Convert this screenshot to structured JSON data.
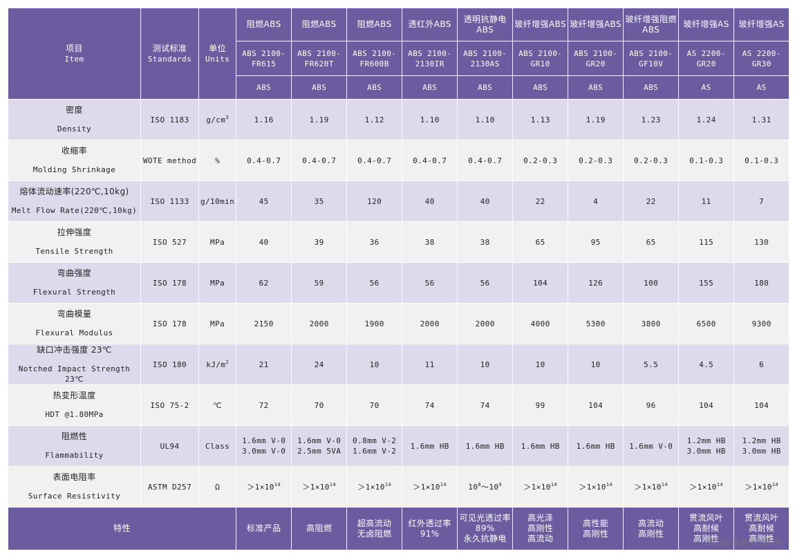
{
  "header": {
    "item": {
      "cn": "项目",
      "en": "Item"
    },
    "standard": {
      "cn": "测试标准",
      "en": "Standards"
    },
    "unit": {
      "cn": "单位",
      "en": "Units"
    },
    "grades": [
      {
        "name": "阻燃ABS",
        "code": [
          "ABS 2100-",
          "FR615"
        ],
        "base": "ABS"
      },
      {
        "name": "阻燃ABS",
        "code": [
          "ABS 2100-",
          "FR620T"
        ],
        "base": "ABS"
      },
      {
        "name": "阻燃ABS",
        "code": [
          "ABS 2100-",
          "FR600B"
        ],
        "base": "ABS"
      },
      {
        "name": "透红外ABS",
        "code": [
          "ABS 2100-",
          "2130IR"
        ],
        "base": "ABS"
      },
      {
        "name": "透明抗静电ABS",
        "code": [
          "ABS 2100-",
          "2130AS"
        ],
        "base": "ABS"
      },
      {
        "name": "玻纤增强ABS",
        "code": [
          "ABS 2100-",
          "GR10"
        ],
        "base": "ABS"
      },
      {
        "name": "玻纤增强ABS",
        "code": [
          "ABS 2100-",
          "GR20"
        ],
        "base": "ABS"
      },
      {
        "name": "玻纤增强阻燃ABS",
        "code": [
          "ABS 2100-",
          "GF10V"
        ],
        "base": "ABS"
      },
      {
        "name": "玻纤增强AS",
        "code": [
          "AS 2200-",
          "GR20"
        ],
        "base": "AS"
      },
      {
        "name": "玻纤增强AS",
        "code": [
          "AS 2200-",
          "GR30"
        ],
        "base": "AS"
      }
    ]
  },
  "rows": [
    {
      "cn": "密度",
      "en": "Density",
      "standard": "ISO 1183",
      "unit": "g/cm",
      "unit_sup": "3",
      "values": [
        "1.16",
        "1.19",
        "1.12",
        "1.10",
        "1.10",
        "1.13",
        "1.19",
        "1.23",
        "1.24",
        "1.31"
      ]
    },
    {
      "cn": "收缩率",
      "en": "Molding Shrinkage",
      "standard": "WOTE method",
      "unit": "%",
      "values": [
        "0.4-0.7",
        "0.4-0.7",
        "0.4-0.7",
        "0.4-0.7",
        "0.4-0.7",
        "0.2-0.3",
        "0.2-0.3",
        "0.2-0.3",
        "0.1-0.3",
        "0.1-0.3"
      ]
    },
    {
      "cn": "熔体流动速率(220℃,10kg)",
      "en": "Melt Flow Rate(220℃,10kg)",
      "standard": "ISO 1133",
      "unit": "g/10min",
      "values": [
        "45",
        "35",
        "120",
        "40",
        "40",
        "22",
        "4",
        "22",
        "11",
        "7"
      ]
    },
    {
      "cn": "拉伸强度",
      "en": "Tensile Strength",
      "standard": "ISO 527",
      "unit": "MPa",
      "values": [
        "40",
        "39",
        "36",
        "38",
        "38",
        "65",
        "95",
        "65",
        "115",
        "130"
      ]
    },
    {
      "cn": "弯曲强度",
      "en": "Flexural Strength",
      "standard": "ISO 178",
      "unit": "MPa",
      "values": [
        "62",
        "59",
        "56",
        "56",
        "56",
        "104",
        "126",
        "100",
        "155",
        "180"
      ]
    },
    {
      "cn": "弯曲模量",
      "en": "Flexural Modulus",
      "standard": "ISO 178",
      "unit": "MPa",
      "values": [
        "2150",
        "2000",
        "1900",
        "2000",
        "2000",
        "4000",
        "5300",
        "3800",
        "6500",
        "9300"
      ]
    },
    {
      "cn": "缺口冲击强度 23℃",
      "en": "Notched Impact Strength 23℃",
      "standard": "ISO 180",
      "unit": "kJ/m",
      "unit_sup": "2",
      "values": [
        "21",
        "24",
        "10",
        "11",
        "10",
        "10",
        "10",
        "5.5",
        "4.5",
        "6"
      ]
    },
    {
      "cn": "热变形温度",
      "en": "HDT @1.80MPa",
      "standard": "ISO 75-2",
      "unit": "℃",
      "values": [
        "72",
        "70",
        "70",
        "74",
        "74",
        "99",
        "104",
        "96",
        "104",
        "104"
      ]
    },
    {
      "cn": "阻燃性",
      "en": "Flammability",
      "standard": "UL94",
      "unit": "Class",
      "values": [
        [
          "1.6mm V-0",
          "3.0mm  V-0"
        ],
        [
          "1.6mm V-0",
          "2.5mm 5VA"
        ],
        [
          "0.8mm V-2",
          "1.6mm V-2"
        ],
        [
          "1.6mm HB"
        ],
        [
          "1.6mm HB"
        ],
        [
          "1.6mm HB"
        ],
        [
          "1.6mm HB"
        ],
        [
          "1.6mm V-0"
        ],
        [
          "1.2mm HB",
          "3.0mm HB"
        ],
        [
          "1.2mm HB",
          "3.0mm HB"
        ]
      ]
    },
    {
      "cn": "表面电阻率",
      "en": "Surface Resistivity",
      "standard": "ASTM D257",
      "unit": "Ω",
      "resistivity": [
        {
          "base": "＞1×10",
          "exp": "14"
        },
        {
          "base": "＞1×10",
          "exp": "14"
        },
        {
          "base": "＞1×10",
          "exp": "14"
        },
        {
          "base": "＞1×10",
          "exp": "14"
        },
        {
          "range": true,
          "a": "10",
          "a_exp": "8",
          "sep": "～",
          "b": "10",
          "b_exp": "9"
        },
        {
          "base": "＞1×10",
          "exp": "14"
        },
        {
          "base": "＞1×10",
          "exp": "14"
        },
        {
          "base": "＞1×10",
          "exp": "14"
        },
        {
          "base": "＞1×10",
          "exp": "14"
        },
        {
          "base": "＞1×10",
          "exp": "14"
        }
      ]
    }
  ],
  "features": {
    "label": "特性",
    "values": [
      [
        "标准产品"
      ],
      [
        "高阻燃"
      ],
      [
        "超高流动",
        "无卤阻燃"
      ],
      [
        "红外透过率",
        "91%"
      ],
      [
        "可见光透过率",
        "89%",
        "永久抗静电"
      ],
      [
        "高光泽",
        "高刚性",
        "高流动"
      ],
      [
        "高性能",
        "高刚性"
      ],
      [
        "高流动",
        "高刚性"
      ],
      [
        "贯流风叶",
        "高耐候",
        "高刚性"
      ],
      [
        "贯流风叶",
        "高耐候",
        "高刚性"
      ]
    ]
  },
  "watermark": "本图片来源于塑库网",
  "colors": {
    "header": "#6b5c9f",
    "row_odd": "#dedaeb",
    "row_even": "#f1f1f1"
  }
}
